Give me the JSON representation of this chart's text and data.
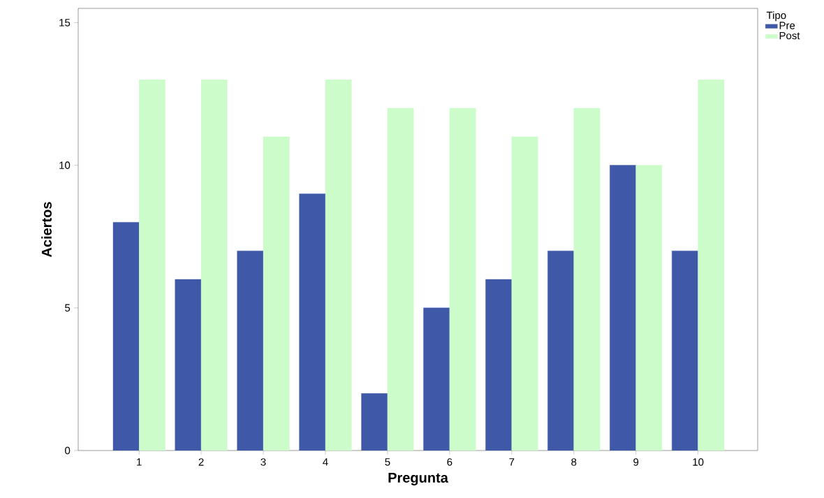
{
  "chart_data": {
    "type": "bar",
    "xlabel": "Pregunta",
    "ylabel": "Aciertos",
    "legend_title": "Tipo",
    "categories": [
      "1",
      "2",
      "3",
      "4",
      "5",
      "6",
      "7",
      "8",
      "9",
      "10"
    ],
    "series": [
      {
        "name": "Pre",
        "color": "#3f58a8",
        "values": [
          8,
          6,
          7,
          9,
          2,
          5,
          6,
          7,
          10,
          7
        ]
      },
      {
        "name": "Post",
        "color": "#ccfcca",
        "values": [
          13,
          13,
          11,
          13,
          12,
          12,
          11,
          12,
          10,
          13
        ]
      }
    ],
    "ylim": [
      0,
      15.5
    ],
    "yticks": [
      0,
      5,
      10,
      15
    ],
    "grid": false,
    "legend": "right"
  }
}
